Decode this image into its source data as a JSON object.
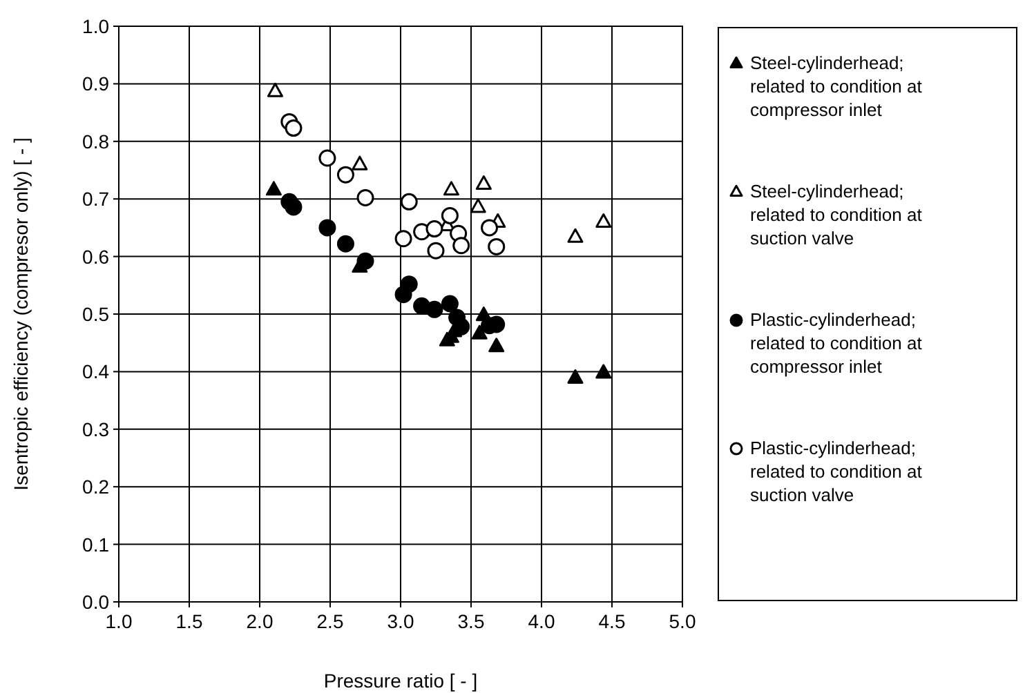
{
  "chart_data": {
    "type": "scatter",
    "xlabel": "Pressure ratio [ - ]",
    "ylabel": "Isentropic efficiency (compresor only) [ - ]",
    "xlim": [
      1,
      5
    ],
    "ylim": [
      0,
      1
    ],
    "xticks": [
      {
        "value": 1,
        "label": "1.0"
      },
      {
        "value": 1.5,
        "label": "1.5"
      },
      {
        "value": 2,
        "label": "2.0"
      },
      {
        "value": 2.5,
        "label": "2.5"
      },
      {
        "value": 3,
        "label": "3.0"
      },
      {
        "value": 3.5,
        "label": "3.5"
      },
      {
        "value": 4,
        "label": "4.0"
      },
      {
        "value": 4.5,
        "label": "4.5"
      },
      {
        "value": 5,
        "label": "5.0"
      }
    ],
    "yticks": [
      {
        "value": 0,
        "label": "0.0"
      },
      {
        "value": 0.1,
        "label": "0.1"
      },
      {
        "value": 0.2,
        "label": "0.2"
      },
      {
        "value": 0.3,
        "label": "0.3"
      },
      {
        "value": 0.4,
        "label": "0.4"
      },
      {
        "value": 0.5,
        "label": "0.5"
      },
      {
        "value": 0.6,
        "label": "0.6"
      },
      {
        "value": 0.7,
        "label": "0.7"
      },
      {
        "value": 0.8,
        "label": "0.8"
      },
      {
        "value": 0.9,
        "label": "0.9"
      },
      {
        "value": 1,
        "label": "1.0"
      }
    ],
    "grid": true,
    "legend": "right",
    "series": [
      {
        "name": "Steel-cylinderhead; related to condition at compressor inlet",
        "marker": "triangle",
        "color": "#000000",
        "x": [
          2.1,
          2.71,
          3.33,
          3.36,
          3.38,
          3.56,
          3.59,
          3.68,
          4.24,
          4.44
        ],
        "values": [
          0.716,
          0.582,
          0.454,
          0.46,
          0.47,
          0.466,
          0.498,
          0.444,
          0.389,
          0.398
        ]
      },
      {
        "name": "Steel-cylinderhead; related to condition at suction valve",
        "marker": "triangle",
        "color": "#ffffff",
        "x": [
          2.11,
          2.71,
          3.36,
          3.59,
          3.55,
          3.33,
          3.69,
          4.24,
          4.44
        ],
        "values": [
          0.887,
          0.76,
          0.716,
          0.726,
          0.686,
          0.654,
          0.66,
          0.634,
          0.66
        ]
      },
      {
        "name": "Plastic-cylinderhead; related to condition at compressor inlet",
        "marker": "circle",
        "color": "#000000",
        "x": [
          2.21,
          2.24,
          2.48,
          2.61,
          2.75,
          3.06,
          3.02,
          3.15,
          3.24,
          3.35,
          3.4,
          3.43,
          3.63,
          3.68
        ],
        "values": [
          0.695,
          0.686,
          0.65,
          0.622,
          0.592,
          0.552,
          0.534,
          0.514,
          0.508,
          0.518,
          0.494,
          0.478,
          0.48,
          0.482
        ]
      },
      {
        "name": "Plastic-cylinderhead; related to condition at suction valve",
        "marker": "circle",
        "color": "#ffffff",
        "x": [
          2.21,
          2.24,
          2.48,
          2.61,
          2.75,
          3.06,
          3.02,
          3.15,
          3.24,
          3.35,
          3.25,
          3.41,
          3.43,
          3.63,
          3.68
        ],
        "values": [
          0.834,
          0.823,
          0.771,
          0.742,
          0.702,
          0.695,
          0.631,
          0.643,
          0.648,
          0.671,
          0.61,
          0.64,
          0.619,
          0.65,
          0.617
        ]
      }
    ]
  }
}
